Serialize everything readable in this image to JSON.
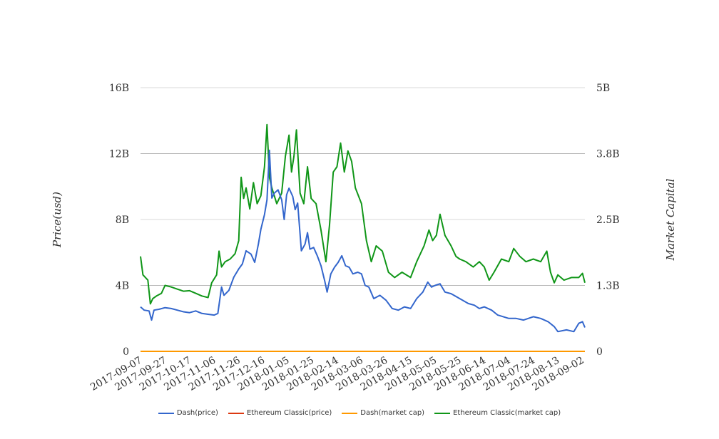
{
  "chart_data": {
    "type": "line",
    "xlabel": "",
    "ylabel": "Price(usd)",
    "y2label": "Market Capital",
    "y_ticks": [
      "0",
      "4B",
      "8B",
      "12B",
      "16B"
    ],
    "y2_ticks": [
      "0",
      "1.3B",
      "2.5B",
      "3.8B",
      "5B"
    ],
    "ylim": [
      0,
      16000000000
    ],
    "y2lim": [
      0,
      5000000000
    ],
    "x_ticks": [
      "2017-09-07",
      "2017-09-27",
      "2017-10-17",
      "2017-11-06",
      "2017-11-26",
      "2017-12-16",
      "2018-01-05",
      "2018-01-25",
      "2018-02-14",
      "2018-03-06",
      "2018-03-26",
      "2018-04-15",
      "2018-05-05",
      "2018-05-25",
      "2018-06-14",
      "2018-07-04",
      "2018-07-24",
      "2018-08-13",
      "2018-09-02"
    ],
    "x_range": [
      "2017-09-07",
      "2018-09-04"
    ],
    "legend_position": "bottom",
    "grid": true,
    "series": [
      {
        "name": "Dash(price)",
        "axis": "left",
        "color": "#3366cc",
        "points": [
          [
            "2017-09-07",
            2700000000.0
          ],
          [
            "2017-09-10",
            2500000000.0
          ],
          [
            "2017-09-14",
            2450000000.0
          ],
          [
            "2017-09-16",
            1900000000.0
          ],
          [
            "2017-09-18",
            2500000000.0
          ],
          [
            "2017-09-22",
            2550000000.0
          ],
          [
            "2017-09-27",
            2650000000.0
          ],
          [
            "2017-10-02",
            2600000000.0
          ],
          [
            "2017-10-07",
            2500000000.0
          ],
          [
            "2017-10-12",
            2400000000.0
          ],
          [
            "2017-10-17",
            2350000000.0
          ],
          [
            "2017-10-22",
            2450000000.0
          ],
          [
            "2017-10-27",
            2300000000.0
          ],
          [
            "2017-11-01",
            2250000000.0
          ],
          [
            "2017-11-06",
            2200000000.0
          ],
          [
            "2017-11-09",
            2300000000.0
          ],
          [
            "2017-11-12",
            3900000000.0
          ],
          [
            "2017-11-14",
            3400000000.0
          ],
          [
            "2017-11-18",
            3700000000.0
          ],
          [
            "2017-11-22",
            4500000000.0
          ],
          [
            "2017-11-26",
            5000000000.0
          ],
          [
            "2017-11-29",
            5300000000.0
          ],
          [
            "2017-12-02",
            6100000000.0
          ],
          [
            "2017-12-06",
            5900000000.0
          ],
          [
            "2017-12-09",
            5400000000.0
          ],
          [
            "2017-12-12",
            6500000000.0
          ],
          [
            "2017-12-14",
            7400000000.0
          ],
          [
            "2017-12-17",
            8300000000.0
          ],
          [
            "2017-12-19",
            9200000000.0
          ],
          [
            "2017-12-21",
            12200000000.0
          ],
          [
            "2017-12-23",
            9300000000.0
          ],
          [
            "2017-12-25",
            9600000000.0
          ],
          [
            "2017-12-28",
            9800000000.0
          ],
          [
            "2017-12-31",
            9200000000.0
          ],
          [
            "2018-01-02",
            8000000000.0
          ],
          [
            "2018-01-04",
            9500000000.0
          ],
          [
            "2018-01-06",
            9900000000.0
          ],
          [
            "2018-01-09",
            9400000000.0
          ],
          [
            "2018-01-11",
            8600000000.0
          ],
          [
            "2018-01-13",
            9000000000.0
          ],
          [
            "2018-01-16",
            6100000000.0
          ],
          [
            "2018-01-19",
            6500000000.0
          ],
          [
            "2018-01-21",
            7200000000.0
          ],
          [
            "2018-01-23",
            6200000000.0
          ],
          [
            "2018-01-26",
            6300000000.0
          ],
          [
            "2018-01-29",
            5800000000.0
          ],
          [
            "2018-02-01",
            5200000000.0
          ],
          [
            "2018-02-04",
            4300000000.0
          ],
          [
            "2018-02-06",
            3600000000.0
          ],
          [
            "2018-02-09",
            4700000000.0
          ],
          [
            "2018-02-12",
            5100000000.0
          ],
          [
            "2018-02-15",
            5400000000.0
          ],
          [
            "2018-02-18",
            5800000000.0
          ],
          [
            "2018-02-21",
            5200000000.0
          ],
          [
            "2018-02-24",
            5100000000.0
          ],
          [
            "2018-02-27",
            4700000000.0
          ],
          [
            "2018-03-03",
            4800000000.0
          ],
          [
            "2018-03-06",
            4700000000.0
          ],
          [
            "2018-03-09",
            4000000000.0
          ],
          [
            "2018-03-12",
            3900000000.0
          ],
          [
            "2018-03-16",
            3200000000.0
          ],
          [
            "2018-03-21",
            3400000000.0
          ],
          [
            "2018-03-26",
            3100000000.0
          ],
          [
            "2018-03-31",
            2600000000.0
          ],
          [
            "2018-04-05",
            2500000000.0
          ],
          [
            "2018-04-10",
            2700000000.0
          ],
          [
            "2018-04-15",
            2600000000.0
          ],
          [
            "2018-04-20",
            3200000000.0
          ],
          [
            "2018-04-25",
            3600000000.0
          ],
          [
            "2018-04-29",
            4200000000.0
          ],
          [
            "2018-05-02",
            3900000000.0
          ],
          [
            "2018-05-05",
            4000000000.0
          ],
          [
            "2018-05-09",
            4100000000.0
          ],
          [
            "2018-05-13",
            3600000000.0
          ],
          [
            "2018-05-18",
            3500000000.0
          ],
          [
            "2018-05-25",
            3200000000.0
          ],
          [
            "2018-06-01",
            2900000000.0
          ],
          [
            "2018-06-06",
            2800000000.0
          ],
          [
            "2018-06-10",
            2600000000.0
          ],
          [
            "2018-06-14",
            2700000000.0
          ],
          [
            "2018-06-20",
            2500000000.0
          ],
          [
            "2018-06-25",
            2200000000.0
          ],
          [
            "2018-07-04",
            2000000000.0
          ],
          [
            "2018-07-10",
            2000000000.0
          ],
          [
            "2018-07-16",
            1900000000.0
          ],
          [
            "2018-07-24",
            2100000000.0
          ],
          [
            "2018-07-30",
            2000000000.0
          ],
          [
            "2018-08-05",
            1800000000.0
          ],
          [
            "2018-08-10",
            1500000000.0
          ],
          [
            "2018-08-13",
            1200000000.0
          ],
          [
            "2018-08-20",
            1300000000.0
          ],
          [
            "2018-08-26",
            1200000000.0
          ],
          [
            "2018-08-30",
            1700000000.0
          ],
          [
            "2018-09-02",
            1800000000.0
          ],
          [
            "2018-09-04",
            1450000000.0
          ]
        ]
      },
      {
        "name": "Ethereum Classic(price)",
        "axis": "left",
        "color": "#dc3912",
        "points": [
          [
            "2017-09-07",
            0
          ],
          [
            "2018-09-04",
            0
          ]
        ]
      },
      {
        "name": "Dash(market cap)",
        "axis": "left",
        "color": "#ff9900",
        "points": [
          [
            "2017-09-07",
            0
          ],
          [
            "2018-09-04",
            0
          ]
        ]
      },
      {
        "name": "Ethereum Classic(market cap)",
        "axis": "right",
        "color": "#109618",
        "points": [
          [
            "2017-09-07",
            1800000000.0
          ],
          [
            "2017-09-09",
            1450000000.0
          ],
          [
            "2017-09-11",
            1400000000.0
          ],
          [
            "2017-09-13",
            1350000000.0
          ],
          [
            "2017-09-15",
            900000000.0
          ],
          [
            "2017-09-17",
            1000000000.0
          ],
          [
            "2017-09-20",
            1050000000.0
          ],
          [
            "2017-09-24",
            1100000000.0
          ],
          [
            "2017-09-27",
            1250000000.0
          ],
          [
            "2017-10-02",
            1220000000.0
          ],
          [
            "2017-10-07",
            1180000000.0
          ],
          [
            "2017-10-12",
            1140000000.0
          ],
          [
            "2017-10-17",
            1150000000.0
          ],
          [
            "2017-10-22",
            1100000000.0
          ],
          [
            "2017-10-27",
            1050000000.0
          ],
          [
            "2017-11-01",
            1020000000.0
          ],
          [
            "2017-11-04",
            1300000000.0
          ],
          [
            "2017-11-08",
            1450000000.0
          ],
          [
            "2017-11-10",
            1900000000.0
          ],
          [
            "2017-11-12",
            1600000000.0
          ],
          [
            "2017-11-15",
            1700000000.0
          ],
          [
            "2017-11-19",
            1750000000.0
          ],
          [
            "2017-11-23",
            1850000000.0
          ],
          [
            "2017-11-26",
            2100000000.0
          ],
          [
            "2017-11-28",
            3300000000.0
          ],
          [
            "2017-11-30",
            2900000000.0
          ],
          [
            "2017-12-02",
            3100000000.0
          ],
          [
            "2017-12-05",
            2700000000.0
          ],
          [
            "2017-12-08",
            3200000000.0
          ],
          [
            "2017-12-11",
            2800000000.0
          ],
          [
            "2017-12-14",
            2950000000.0
          ],
          [
            "2017-12-17",
            3500000000.0
          ],
          [
            "2017-12-19",
            4300000000.0
          ],
          [
            "2017-12-21",
            3300000000.0
          ],
          [
            "2017-12-23",
            3100000000.0
          ],
          [
            "2017-12-27",
            2800000000.0
          ],
          [
            "2017-12-31",
            3000000000.0
          ],
          [
            "2018-01-03",
            3700000000.0
          ],
          [
            "2018-01-06",
            4100000000.0
          ],
          [
            "2018-01-08",
            3400000000.0
          ],
          [
            "2018-01-10",
            3700000000.0
          ],
          [
            "2018-01-12",
            4200000000.0
          ],
          [
            "2018-01-15",
            3000000000.0
          ],
          [
            "2018-01-18",
            2800000000.0
          ],
          [
            "2018-01-21",
            3500000000.0
          ],
          [
            "2018-01-24",
            2900000000.0
          ],
          [
            "2018-01-28",
            2800000000.0
          ],
          [
            "2018-02-01",
            2300000000.0
          ],
          [
            "2018-02-05",
            1700000000.0
          ],
          [
            "2018-02-08",
            2400000000.0
          ],
          [
            "2018-02-11",
            3400000000.0
          ],
          [
            "2018-02-14",
            3500000000.0
          ],
          [
            "2018-02-17",
            3950000000.0
          ],
          [
            "2018-02-20",
            3400000000.0
          ],
          [
            "2018-02-23",
            3800000000.0
          ],
          [
            "2018-02-26",
            3600000000.0
          ],
          [
            "2018-03-01",
            3100000000.0
          ],
          [
            "2018-03-06",
            2800000000.0
          ],
          [
            "2018-03-10",
            2100000000.0
          ],
          [
            "2018-03-14",
            1700000000.0
          ],
          [
            "2018-03-18",
            2000000000.0
          ],
          [
            "2018-03-23",
            1900000000.0
          ],
          [
            "2018-03-28",
            1500000000.0
          ],
          [
            "2018-04-02",
            1400000000.0
          ],
          [
            "2018-04-08",
            1500000000.0
          ],
          [
            "2018-04-15",
            1400000000.0
          ],
          [
            "2018-04-20",
            1700000000.0
          ],
          [
            "2018-04-26",
            2000000000.0
          ],
          [
            "2018-04-30",
            2300000000.0
          ],
          [
            "2018-05-03",
            2100000000.0
          ],
          [
            "2018-05-06",
            2200000000.0
          ],
          [
            "2018-05-09",
            2600000000.0
          ],
          [
            "2018-05-13",
            2200000000.0
          ],
          [
            "2018-05-18",
            2000000000.0
          ],
          [
            "2018-05-22",
            1800000000.0
          ],
          [
            "2018-05-25",
            1750000000.0
          ],
          [
            "2018-05-30",
            1700000000.0
          ],
          [
            "2018-06-05",
            1600000000.0
          ],
          [
            "2018-06-10",
            1700000000.0
          ],
          [
            "2018-06-14",
            1600000000.0
          ],
          [
            "2018-06-18",
            1350000000.0
          ],
          [
            "2018-06-22",
            1500000000.0
          ],
          [
            "2018-06-28",
            1750000000.0
          ],
          [
            "2018-07-04",
            1700000000.0
          ],
          [
            "2018-07-08",
            1950000000.0
          ],
          [
            "2018-07-13",
            1800000000.0
          ],
          [
            "2018-07-18",
            1700000000.0
          ],
          [
            "2018-07-24",
            1750000000.0
          ],
          [
            "2018-07-30",
            1700000000.0
          ],
          [
            "2018-08-04",
            1900000000.0
          ],
          [
            "2018-08-07",
            1500000000.0
          ],
          [
            "2018-08-10",
            1300000000.0
          ],
          [
            "2018-08-13",
            1450000000.0
          ],
          [
            "2018-08-18",
            1350000000.0
          ],
          [
            "2018-08-24",
            1400000000.0
          ],
          [
            "2018-08-30",
            1400000000.0
          ],
          [
            "2018-09-02",
            1480000000.0
          ],
          [
            "2018-09-04",
            1300000000.0
          ]
        ]
      }
    ]
  }
}
